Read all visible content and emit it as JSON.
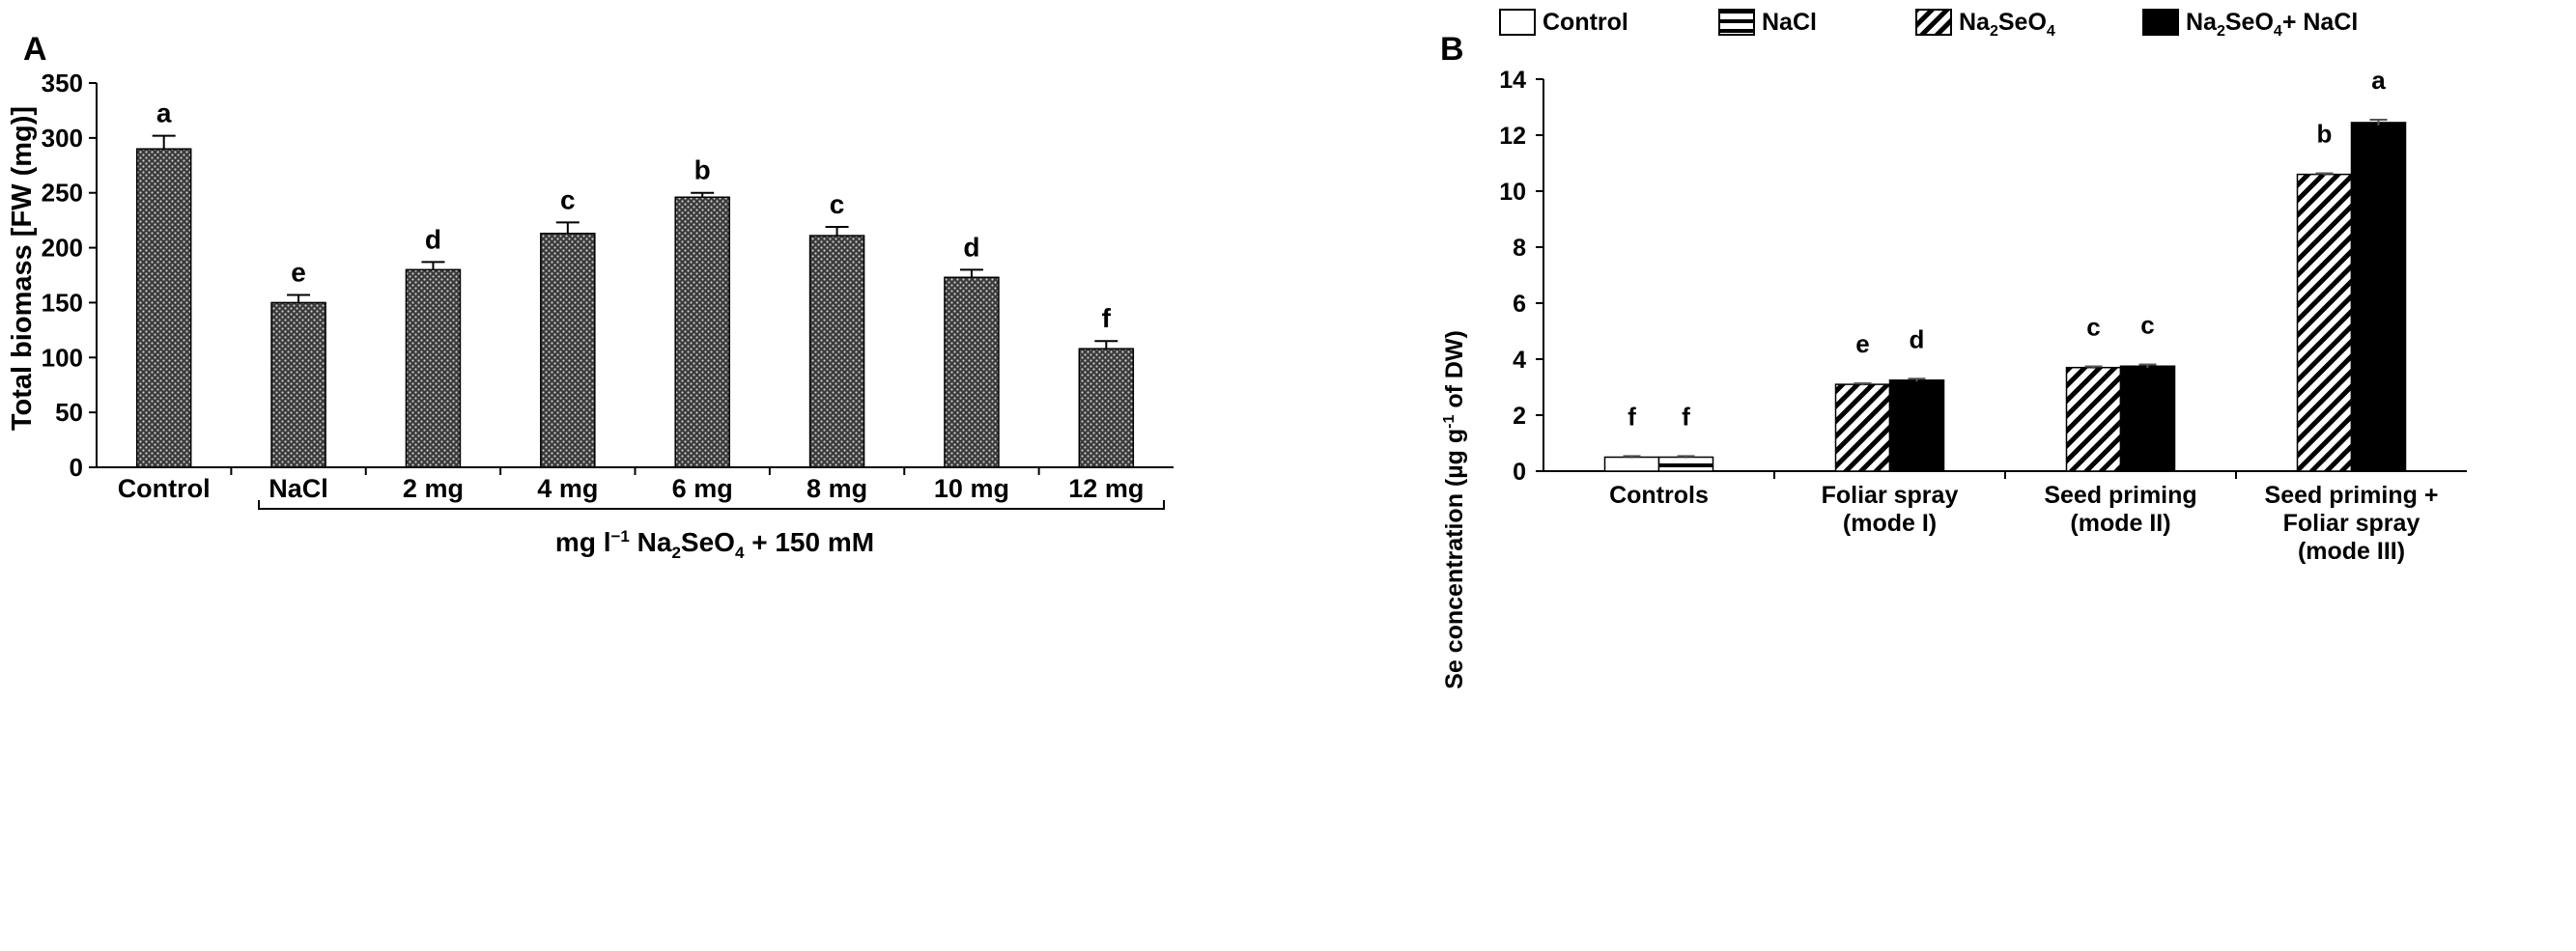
{
  "chart_data": [
    {
      "type": "bar",
      "panel_label": "A",
      "ylabel": "Total biomass [FW (mg)]",
      "xlabel_parts": [
        "mg l",
        "−1",
        " Na",
        "2",
        "SeO",
        "4",
        " + 150 mM"
      ],
      "ylim": [
        0,
        350
      ],
      "yticks": [
        "0",
        "50",
        "100",
        "150",
        "200",
        "250",
        "300",
        "350"
      ],
      "categories": [
        "Control",
        "NaCl",
        "2 mg",
        "4 mg",
        "6 mg",
        "8 mg",
        "10 mg",
        "12 mg"
      ],
      "values": [
        290,
        150,
        180,
        213,
        246,
        211,
        173,
        108
      ],
      "errors": [
        12,
        7,
        7,
        10,
        4,
        8,
        7,
        7
      ],
      "letters": [
        "a",
        "e",
        "d",
        "c",
        "b",
        "c",
        "d",
        "f"
      ]
    },
    {
      "type": "bar",
      "panel_label": "B",
      "ylabel_parts": [
        "Se concentration  (µg g",
        "-1",
        " of DW)"
      ],
      "ylim": [
        0,
        14
      ],
      "yticks": [
        "0",
        "2",
        "4",
        "6",
        "8",
        "10",
        "12",
        "14"
      ],
      "legend": [
        {
          "parts": [
            "Control"
          ],
          "pattern": "white"
        },
        {
          "parts": [
            "NaCl"
          ],
          "pattern": "hstripe"
        },
        {
          "parts": [
            "Na",
            "2",
            "SeO",
            "4"
          ],
          "pattern": "diag"
        },
        {
          "parts": [
            "Na",
            "2",
            "SeO",
            "4",
            "+ NaCl"
          ],
          "pattern": "black"
        }
      ],
      "groups": [
        {
          "label_lines": [
            "Controls"
          ],
          "bars": [
            {
              "pattern": "white",
              "value": 0.5,
              "error": 0.04,
              "letter": "f"
            },
            {
              "pattern": "hstripe",
              "value": 0.5,
              "error": 0.04,
              "letter": "f"
            }
          ]
        },
        {
          "label_lines": [
            "Foliar spray",
            "(mode I)"
          ],
          "bars": [
            {
              "pattern": "diag",
              "value": 3.1,
              "error": 0.04,
              "letter": "e"
            },
            {
              "pattern": "black",
              "value": 3.25,
              "error": 0.05,
              "letter": "d"
            }
          ]
        },
        {
          "label_lines": [
            "Seed priming",
            "(mode II)"
          ],
          "bars": [
            {
              "pattern": "diag",
              "value": 3.7,
              "error": 0.04,
              "letter": "c"
            },
            {
              "pattern": "black",
              "value": 3.75,
              "error": 0.06,
              "letter": "c"
            }
          ]
        },
        {
          "label_lines": [
            "Seed priming +",
            "Foliar spray",
            "(mode III)"
          ],
          "bars": [
            {
              "pattern": "diag",
              "value": 10.6,
              "error": 0.04,
              "letter": "b"
            },
            {
              "pattern": "black",
              "value": 12.45,
              "error": 0.1,
              "letter": "a"
            }
          ]
        }
      ]
    }
  ]
}
